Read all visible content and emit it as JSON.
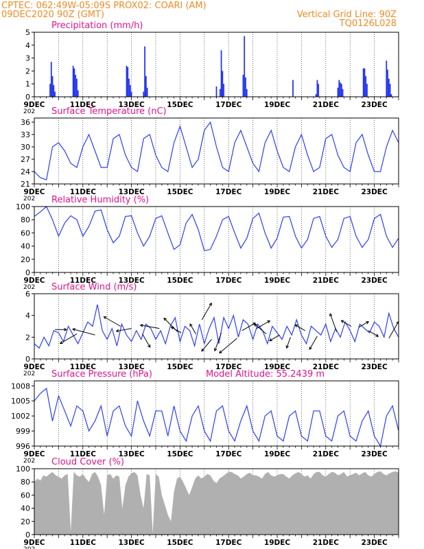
{
  "header": {
    "line1": "CPTEC:   062:49W-05:09S   PROX02: COARI (AM)",
    "line2": "09DEC2020 90Z (GMT)",
    "right1": "Vertical Grid Line: 90Z",
    "right2": "TQ0126L028"
  },
  "colors": {
    "series": "#2c3cff",
    "bars": "#2233ee",
    "panel_title": "#e0148c",
    "header": "#f08a24",
    "cloud": "#b0b0b0"
  },
  "x_axis": {
    "ticks": [
      "9DEC",
      "11DEC",
      "13DEC",
      "15DEC",
      "17DEC",
      "19DEC",
      "21DEC",
      "23DEC"
    ],
    "year_label": "202"
  },
  "chart_data": [
    {
      "id": "precip",
      "type": "bar",
      "title": "Precipitation  (mm/h)",
      "ylim": [
        0,
        5
      ],
      "yticks": [
        0,
        1,
        2,
        3,
        4,
        5
      ],
      "x_unit": "days since 9DEC 00Z",
      "x": [
        0.65,
        0.7,
        0.75,
        0.8,
        0.85,
        1.6,
        1.65,
        1.7,
        1.75,
        1.8,
        3.8,
        3.85,
        3.9,
        3.95,
        4.0,
        4.5,
        4.55,
        4.6,
        4.65,
        7.5,
        7.65,
        7.7,
        7.75,
        7.8,
        8.6,
        8.65,
        8.7,
        8.75,
        10.65,
        11.6,
        11.65,
        11.7,
        12.5,
        12.55,
        12.6,
        12.65,
        12.7,
        13.55,
        13.6,
        13.65,
        13.7,
        14.5,
        14.55,
        14.6,
        14.65,
        14.7
      ],
      "values": [
        1.0,
        2.7,
        1.6,
        0.9,
        0.4,
        2.4,
        2.2,
        1.7,
        1.4,
        0.5,
        2.4,
        2.3,
        1.4,
        0.9,
        0.4,
        0.4,
        3.9,
        1.6,
        0.7,
        0.8,
        0.6,
        3.6,
        2.0,
        1.0,
        1.7,
        4.7,
        1.5,
        0.6,
        1.3,
        0.2,
        1.3,
        1.0,
        0.7,
        1.3,
        1.1,
        1.0,
        0.6,
        2.2,
        2.2,
        1.6,
        1.0,
        2.8,
        2.1,
        1.4,
        1.0,
        0.2
      ]
    },
    {
      "id": "temp",
      "type": "line",
      "title": "Surface Temperature  (nC)",
      "ylim": [
        21,
        37
      ],
      "yticks": [
        21,
        24,
        27,
        30,
        33,
        36
      ],
      "x_unit": "days since 9DEC 00Z",
      "x": [
        0,
        0.25,
        0.5,
        0.75,
        1,
        1.25,
        1.5,
        1.75,
        2,
        2.25,
        2.5,
        2.75,
        3,
        3.25,
        3.5,
        3.75,
        4,
        4.25,
        4.5,
        4.75,
        5,
        5.25,
        5.5,
        5.75,
        6,
        6.25,
        6.5,
        6.75,
        7,
        7.25,
        7.5,
        7.75,
        8,
        8.25,
        8.5,
        8.75,
        9,
        9.25,
        9.5,
        9.75,
        10,
        10.25,
        10.5,
        10.75,
        11,
        11.25,
        11.5,
        11.75,
        12,
        12.25,
        12.5,
        12.75,
        13,
        13.25,
        13.5,
        13.75,
        14,
        14.25,
        14.5,
        14.75,
        15
      ],
      "values": [
        24,
        22.5,
        22,
        30,
        31,
        29,
        26,
        25,
        30,
        33,
        29,
        25,
        25,
        32,
        33,
        28,
        25,
        24,
        32,
        33,
        28,
        25,
        24,
        31,
        35,
        30,
        25,
        27,
        34,
        36,
        30,
        25,
        24,
        31,
        34,
        30,
        26,
        24,
        31,
        34,
        29,
        25,
        24,
        30,
        33,
        28,
        24,
        25,
        32,
        33,
        28,
        25,
        24,
        31,
        33,
        28,
        24,
        24,
        30,
        34,
        31
      ],
      "series_name": "Temperature"
    },
    {
      "id": "rh",
      "type": "line",
      "title": "Relative Humidity  (%)",
      "ylim": [
        0,
        100
      ],
      "yticks": [
        0,
        20,
        40,
        60,
        80,
        100
      ],
      "x_unit": "days since 9DEC 00Z",
      "x": [
        0,
        0.25,
        0.5,
        0.75,
        1,
        1.25,
        1.5,
        1.75,
        2,
        2.25,
        2.5,
        2.75,
        3,
        3.25,
        3.5,
        3.75,
        4,
        4.25,
        4.5,
        4.75,
        5,
        5.25,
        5.5,
        5.75,
        6,
        6.25,
        6.5,
        6.75,
        7,
        7.25,
        7.5,
        7.75,
        8,
        8.25,
        8.5,
        8.75,
        9,
        9.25,
        9.5,
        9.75,
        10,
        10.25,
        10.5,
        10.75,
        11,
        11.25,
        11.5,
        11.75,
        12,
        12.25,
        12.5,
        12.75,
        13,
        13.25,
        13.5,
        13.75,
        14,
        14.25,
        14.5,
        14.75,
        15
      ],
      "values": [
        85,
        92,
        100,
        80,
        55,
        75,
        86,
        80,
        55,
        70,
        93,
        95,
        65,
        45,
        55,
        85,
        86,
        60,
        40,
        55,
        82,
        86,
        60,
        35,
        42,
        75,
        88,
        65,
        33,
        35,
        55,
        80,
        85,
        60,
        37,
        52,
        82,
        90,
        60,
        37,
        52,
        84,
        85,
        55,
        37,
        50,
        82,
        85,
        55,
        38,
        50,
        82,
        85,
        55,
        38,
        50,
        82,
        88,
        55,
        38,
        52
      ]
    },
    {
      "id": "wind",
      "type": "line",
      "title": "Surface Wind  (m/s)",
      "ylim": [
        0,
        6
      ],
      "yticks": [
        0,
        2,
        4,
        6
      ],
      "x_unit": "days since 9DEC 00Z",
      "x": [
        0,
        0.2,
        0.4,
        0.6,
        0.8,
        1,
        1.2,
        1.4,
        1.6,
        1.8,
        2,
        2.2,
        2.4,
        2.6,
        2.8,
        3,
        3.2,
        3.4,
        3.6,
        3.8,
        4,
        4.2,
        4.4,
        4.6,
        4.8,
        5,
        5.2,
        5.4,
        5.6,
        5.8,
        6,
        6.2,
        6.4,
        6.6,
        6.8,
        7,
        7.2,
        7.4,
        7.6,
        7.8,
        8,
        8.2,
        8.4,
        8.6,
        8.8,
        9,
        9.2,
        9.4,
        9.6,
        9.8,
        10,
        10.2,
        10.4,
        10.6,
        10.8,
        11,
        11.2,
        11.4,
        11.6,
        11.8,
        12,
        12.2,
        12.4,
        12.6,
        12.8,
        13,
        13.2,
        13.4,
        13.6,
        13.8,
        14,
        14.2,
        14.4,
        14.6,
        14.8,
        15
      ],
      "values": [
        1.4,
        1.0,
        2.0,
        1.2,
        2.6,
        2.4,
        1.6,
        3.0,
        2.2,
        1.4,
        2.4,
        3.4,
        3.0,
        5.0,
        2.6,
        1.8,
        2.8,
        1.2,
        3.2,
        2.2,
        1.6,
        2.6,
        1.8,
        3.2,
        2.8,
        1.8,
        2.6,
        1.4,
        3.0,
        3.8,
        1.6,
        3.0,
        2.6,
        1.2,
        3.2,
        1.4,
        2.8,
        3.8,
        1.4,
        3.8,
        2.8,
        4.0,
        2.0,
        3.6,
        3.2,
        1.8,
        3.2,
        2.6,
        1.4,
        3.0,
        2.4,
        1.8,
        3.0,
        2.2,
        3.6,
        2.2,
        1.4,
        3.0,
        2.6,
        2.2,
        3.2,
        1.6,
        2.8,
        2.0,
        3.4,
        2.6,
        1.6,
        3.2,
        2.8,
        2.4,
        3.4,
        3.0,
        2.0,
        4.2,
        2.8,
        2.0
      ],
      "vectors": [
        {
          "x": 0.85,
          "y": 2.7,
          "dir": 0,
          "len": 0.3
        },
        {
          "x": 1.75,
          "y": 2.3,
          "dir": 210,
          "len": 0.5
        },
        {
          "x": 2.5,
          "y": 2.2,
          "dir": 165,
          "len": 0.6
        },
        {
          "x": 3.55,
          "y": 3.0,
          "dir": 150,
          "len": 0.5
        },
        {
          "x": 4.0,
          "y": 2.8,
          "dir": 190,
          "len": 0.4
        },
        {
          "x": 4.45,
          "y": 2.3,
          "dir": 300,
          "len": 0.4
        },
        {
          "x": 5.15,
          "y": 2.8,
          "dir": 170,
          "len": 0.5
        },
        {
          "x": 5.9,
          "y": 2.5,
          "dir": 135,
          "len": 0.5
        },
        {
          "x": 6.05,
          "y": 2.4,
          "dir": 150,
          "len": 0.3
        },
        {
          "x": 6.65,
          "y": 2.3,
          "dir": 120,
          "len": 0.3
        },
        {
          "x": 6.9,
          "y": 3.6,
          "dir": 60,
          "len": 0.5
        },
        {
          "x": 7.3,
          "y": 1.8,
          "dir": 230,
          "len": 0.4
        },
        {
          "x": 7.7,
          "y": 2.4,
          "dir": 250,
          "len": 0.5
        },
        {
          "x": 8.35,
          "y": 1.9,
          "dir": 220,
          "len": 0.6
        },
        {
          "x": 8.55,
          "y": 2.6,
          "dir": 30,
          "len": 0.4
        },
        {
          "x": 9.15,
          "y": 2.8,
          "dir": 30,
          "len": 0.4
        },
        {
          "x": 9.55,
          "y": 2.3,
          "dir": 140,
          "len": 0.4
        },
        {
          "x": 10.1,
          "y": 2.2,
          "dir": 210,
          "len": 0.3
        },
        {
          "x": 10.55,
          "y": 2.0,
          "dir": 250,
          "len": 0.3
        },
        {
          "x": 11.15,
          "y": 2.6,
          "dir": 150,
          "len": 0.3
        },
        {
          "x": 11.65,
          "y": 2.1,
          "dir": 240,
          "len": 0.4
        },
        {
          "x": 12.45,
          "y": 2.5,
          "dir": 110,
          "len": 0.5
        },
        {
          "x": 13.05,
          "y": 3.0,
          "dir": 150,
          "len": 0.3
        },
        {
          "x": 13.35,
          "y": 2.9,
          "dir": 30,
          "len": 0.3
        },
        {
          "x": 13.75,
          "y": 2.6,
          "dir": 330,
          "len": 0.3
        },
        {
          "x": 14.6,
          "y": 1.9,
          "dir": 60,
          "len": 0.5
        }
      ]
    },
    {
      "id": "pressure",
      "type": "line",
      "title": "Surface Pressure  (hPa)",
      "annotation": "Model Altitude: 55.2439  m",
      "ylim": [
        996,
        1009
      ],
      "yticks": [
        996,
        999,
        1002,
        1005,
        1008
      ],
      "x_unit": "days since 9DEC 00Z",
      "x": [
        0,
        0.25,
        0.5,
        0.75,
        1,
        1.25,
        1.5,
        1.75,
        2,
        2.25,
        2.5,
        2.75,
        3,
        3.25,
        3.5,
        3.75,
        4,
        4.25,
        4.5,
        4.75,
        5,
        5.25,
        5.5,
        5.75,
        6,
        6.25,
        6.5,
        6.75,
        7,
        7.25,
        7.5,
        7.75,
        8,
        8.25,
        8.5,
        8.75,
        9,
        9.25,
        9.5,
        9.75,
        10,
        10.25,
        10.5,
        10.75,
        11,
        11.25,
        11.5,
        11.75,
        12,
        12.25,
        12.5,
        12.75,
        13,
        13.25,
        13.5,
        13.75,
        14,
        14.25,
        14.5,
        14.75,
        15
      ],
      "values": [
        1005,
        1006.5,
        1007.5,
        1001,
        1006,
        1003,
        1000,
        1004,
        1003,
        999,
        1001,
        1004,
        998,
        1003,
        1004,
        1000,
        998,
        1005,
        1001,
        998,
        1003,
        1003,
        998,
        1004,
        999,
        997,
        1002,
        1004,
        999,
        997,
        1003,
        1004,
        999,
        997,
        1001,
        1004,
        999,
        997,
        1002,
        1003,
        998,
        997,
        1002,
        1003,
        998,
        997,
        1003,
        1003,
        998,
        997,
        1002,
        1003,
        998,
        997,
        1001,
        1003,
        998,
        996,
        1002,
        1004,
        999
      ],
      "series_name": "Pressure"
    },
    {
      "id": "cloud",
      "type": "area",
      "title": "Cloud Cover  (%)",
      "ylim": [
        0,
        100
      ],
      "yticks": [
        0,
        20,
        40,
        60,
        80,
        100
      ],
      "x_unit": "days since 9DEC 00Z",
      "x": [
        0,
        0.125,
        0.25,
        0.375,
        0.5,
        0.625,
        0.75,
        0.875,
        1,
        1.125,
        1.25,
        1.375,
        1.5,
        1.625,
        1.75,
        1.875,
        2,
        2.125,
        2.25,
        2.375,
        2.5,
        2.625,
        2.75,
        2.875,
        3,
        3.125,
        3.25,
        3.375,
        3.5,
        3.625,
        3.75,
        3.875,
        4,
        4.125,
        4.25,
        4.375,
        4.5,
        4.625,
        4.75,
        4.875,
        5,
        5.125,
        5.25,
        5.375,
        5.5,
        5.625,
        5.75,
        5.875,
        6,
        6.125,
        6.25,
        6.375,
        6.5,
        6.625,
        6.75,
        6.875,
        7,
        7.125,
        7.25,
        7.375,
        7.5,
        7.625,
        7.75,
        7.875,
        8,
        8.125,
        8.25,
        8.375,
        8.5,
        8.625,
        8.75,
        8.875,
        9,
        9.125,
        9.25,
        9.375,
        9.5,
        9.625,
        9.75,
        9.875,
        10,
        10.125,
        10.25,
        10.375,
        10.5,
        10.625,
        10.75,
        10.875,
        11,
        11.125,
        11.25,
        11.375,
        11.5,
        11.625,
        11.75,
        11.875,
        12,
        12.125,
        12.25,
        12.375,
        12.5,
        12.625,
        12.75,
        12.875,
        13,
        13.125,
        13.25,
        13.375,
        13.5,
        13.625,
        13.75,
        13.875,
        14,
        14.125,
        14.25,
        14.375,
        14.5,
        14.625,
        14.75,
        14.875,
        15
      ],
      "values": [
        80,
        85,
        82,
        90,
        88,
        92,
        95,
        90,
        88,
        85,
        90,
        92,
        5,
        95,
        90,
        88,
        92,
        85,
        80,
        92,
        95,
        88,
        75,
        30,
        90,
        92,
        85,
        90,
        88,
        40,
        75,
        88,
        93,
        95,
        90,
        60,
        40,
        92,
        90,
        2,
        92,
        88,
        60,
        45,
        30,
        20,
        65,
        85,
        88,
        80,
        70,
        60,
        72,
        85,
        90,
        85,
        88,
        92,
        90,
        82,
        78,
        85,
        88,
        92,
        95,
        95,
        92,
        90,
        85,
        88,
        92,
        94,
        90,
        90,
        88,
        85,
        92,
        95,
        90,
        88,
        90,
        92,
        92,
        88,
        85,
        90,
        93,
        95,
        92,
        88,
        90,
        85,
        92,
        95,
        95,
        90,
        88,
        92,
        95,
        94,
        90,
        92,
        95,
        88,
        90,
        92,
        94,
        90,
        93,
        95,
        90,
        88,
        92,
        95,
        96,
        92,
        90,
        93,
        95,
        96,
        94
      ]
    }
  ],
  "layout_note": ""
}
